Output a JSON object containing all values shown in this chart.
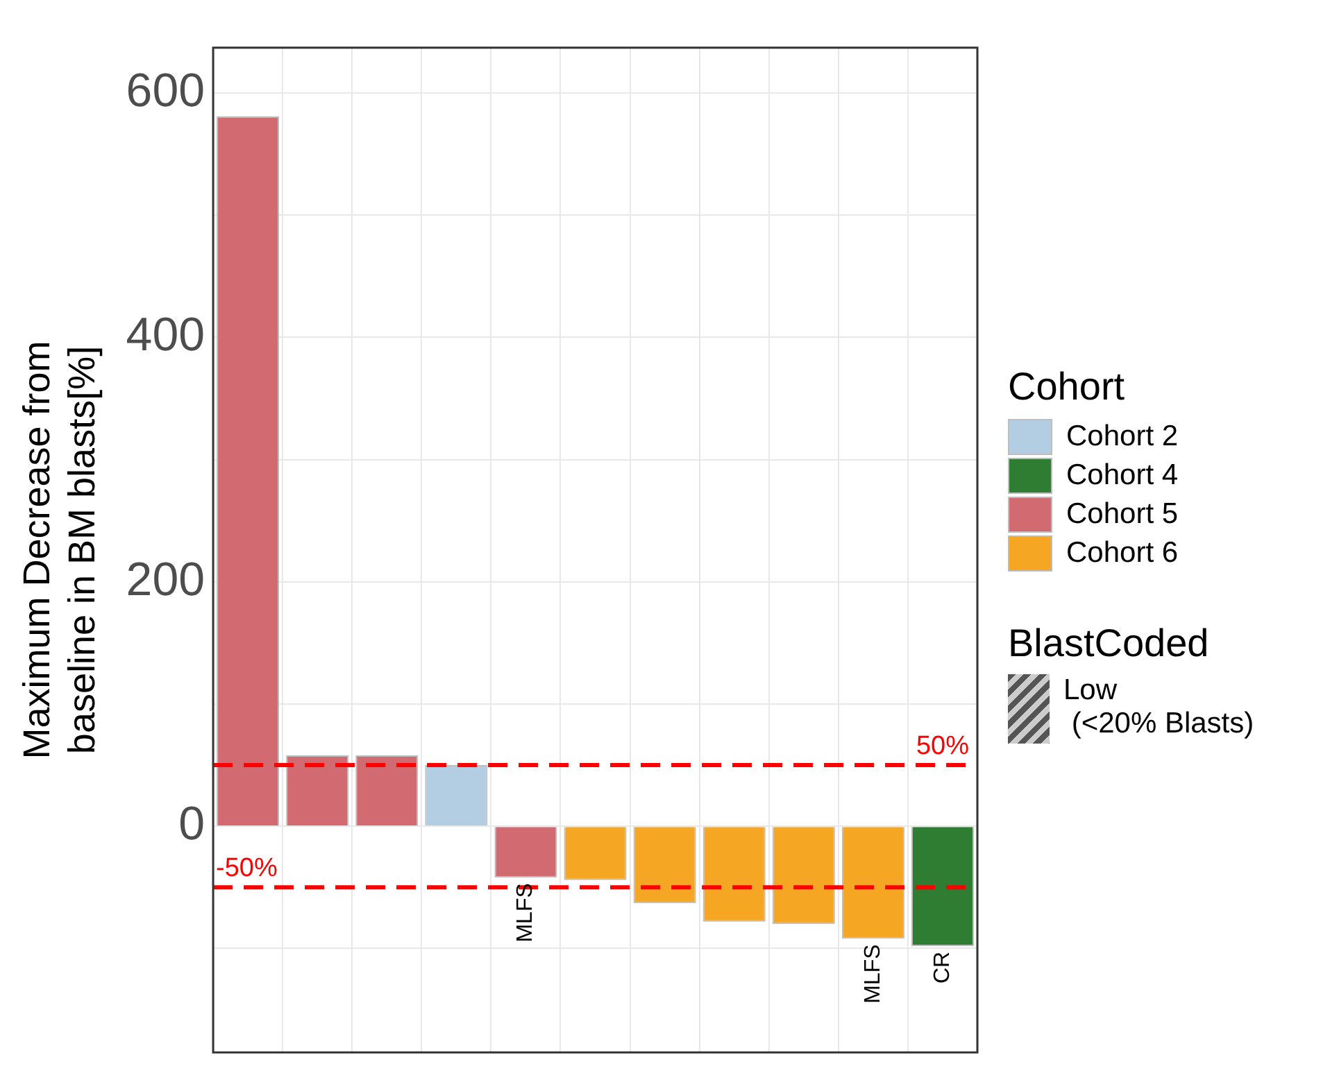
{
  "chart_data": {
    "type": "bar",
    "ylabel": "Maximum Decrease from\nbaseline in BM blasts[%]",
    "legend_title": "Cohort",
    "legend": "right",
    "stacked": true,
    "grid": true,
    "tick_labels": "y",
    "categories": [
      null,
      null,
      null,
      null,
      null,
      null,
      null,
      null,
      null,
      null,
      null
    ],
    "series": [
      {
        "name": "Cohort 2",
        "color": "#b3cde3",
        "values": [
          null,
          null,
          null,
          50,
          null,
          null,
          null,
          null,
          null,
          null,
          null
        ],
        "value_labels": [
          null,
          null,
          null,
          null,
          null,
          null,
          null,
          null,
          null,
          null,
          null
        ]
      },
      {
        "name": "Cohort 4",
        "color": "#2e7d32",
        "values": [
          null,
          null,
          null,
          null,
          null,
          null,
          null,
          null,
          null,
          null,
          -98
        ],
        "value_labels": [
          null,
          null,
          null,
          null,
          null,
          null,
          null,
          null,
          null,
          null,
          "CR"
        ]
      },
      {
        "name": "Cohort 5",
        "color": "#d26a72",
        "values": [
          581,
          58,
          58,
          null,
          -42,
          null,
          null,
          null,
          null,
          null,
          null
        ],
        "value_labels": [
          null,
          null,
          null,
          null,
          "MLFS",
          null,
          null,
          null,
          null,
          null,
          null
        ]
      },
      {
        "name": "Cohort 6",
        "color": "#f5a623",
        "values": [
          null,
          null,
          null,
          null,
          null,
          -44,
          -63,
          -78,
          -80,
          -92,
          null
        ],
        "value_labels": [
          null,
          null,
          null,
          null,
          null,
          null,
          null,
          null,
          null,
          "MLFS",
          null
        ]
      }
    ],
    "ylim": [
      -185,
      637
    ],
    "yticks": [
      {
        "value": -100,
        "label": null
      },
      0,
      {
        "value": 100,
        "label": null
      },
      200,
      {
        "value": 300,
        "label": null
      },
      400,
      {
        "value": 500,
        "label": null
      },
      600
    ],
    "ref_lines": [
      {
        "axis": "y",
        "value": 50,
        "label": "50%",
        "color": "#ff0000",
        "line_style": "dashed"
      },
      {
        "axis": "y",
        "value": -50,
        "label": "-50%",
        "color": "#ff0000",
        "line_style": "dashed"
      }
    ],
    "annotations": [
      "BlastCoded",
      "Low\n (<20% Blasts)"
    ]
  }
}
